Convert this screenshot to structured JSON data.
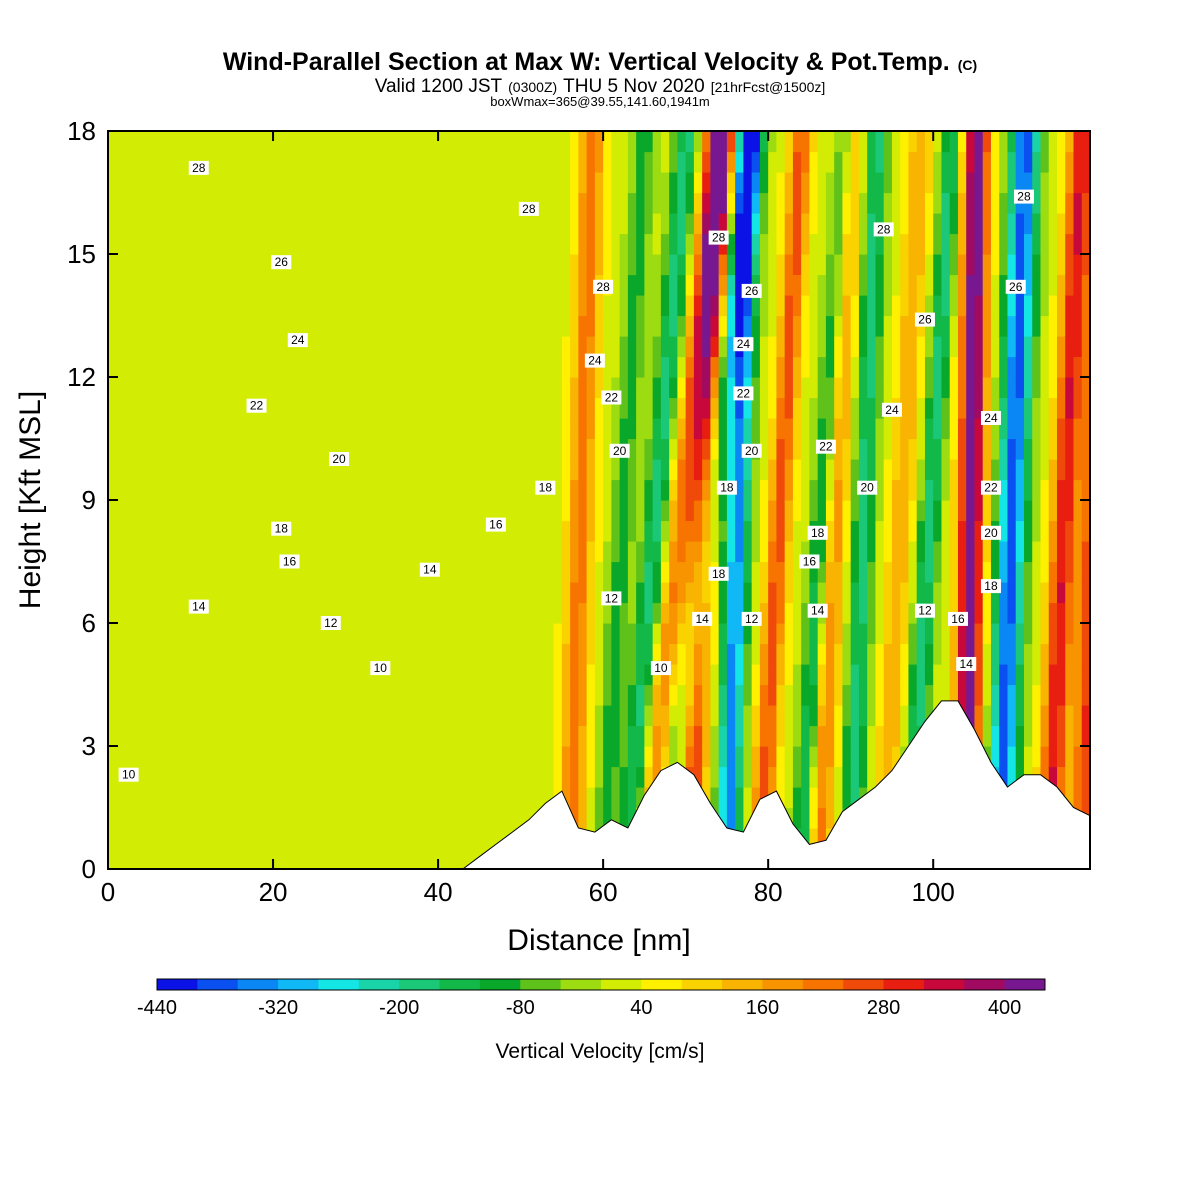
{
  "chart_data": {
    "type": "heatmap",
    "title": "Wind-Parallel Section at Max W: Vertical Velocity & Pot.Temp.",
    "title_mark": "(C)",
    "subtitle": {
      "prefix": "Valid 1200 JST",
      "utc": "(0300Z)",
      "date": "THU 5 Nov 2020",
      "forecast": "[21hrFcst@1500z]"
    },
    "subtitle2": "boxWmax=365@39.55,141.60,1941m",
    "xlabel": "Distance [nm]",
    "ylabel": "Height [Kft MSL]",
    "xlim": [
      0,
      119
    ],
    "ylim": [
      0,
      18
    ],
    "xticks": [
      0,
      20,
      40,
      60,
      80,
      100
    ],
    "yticks": [
      0,
      3,
      6,
      9,
      12,
      15,
      18
    ],
    "colorbar": {
      "label": "Vertical Velocity [cm/s]",
      "levels": [
        -440,
        -400,
        -360,
        -320,
        -280,
        -240,
        -200,
        -160,
        -120,
        -80,
        -40,
        0,
        40,
        80,
        120,
        160,
        200,
        240,
        280,
        320,
        360,
        400,
        440
      ],
      "colors": [
        "#0b12e6",
        "#0a4ff0",
        "#0a86f5",
        "#10b9f5",
        "#14e6e6",
        "#18d4a8",
        "#1ac878",
        "#12b848",
        "#0aa82a",
        "#5ec21a",
        "#9cdc10",
        "#d2ec04",
        "#fff000",
        "#fad200",
        "#f8b400",
        "#f89400",
        "#f87400",
        "#f04a0a",
        "#e81e10",
        "#c8083a",
        "#a00a60",
        "#781890"
      ],
      "tick_values": [
        -440,
        -320,
        -200,
        -80,
        40,
        160,
        280,
        400
      ],
      "tick_labels": [
        "-440",
        "-320",
        "-200",
        "-80",
        "40",
        "160",
        "280",
        "400"
      ]
    },
    "terrain": {
      "x": [
        0,
        43,
        45,
        47,
        49,
        51,
        53,
        55,
        57,
        59,
        61,
        63,
        65,
        67,
        69,
        71,
        73,
        75,
        77,
        79,
        81,
        83,
        85,
        87,
        89,
        91,
        93,
        95,
        97,
        99,
        101,
        103,
        105,
        107,
        109,
        111,
        113,
        115,
        117,
        119
      ],
      "height": [
        0,
        0,
        0.3,
        0.6,
        0.9,
        1.2,
        1.6,
        1.9,
        1.0,
        0.9,
        1.2,
        1.0,
        1.8,
        2.4,
        2.6,
        2.3,
        1.6,
        1.0,
        0.9,
        1.7,
        1.9,
        1.1,
        0.6,
        0.7,
        1.4,
        1.7,
        2.0,
        2.4,
        3.0,
        3.6,
        4.1,
        4.1,
        3.4,
        2.6,
        2.0,
        2.3,
        2.3,
        2.0,
        1.5,
        1.3
      ]
    },
    "w_field": {
      "background": 20,
      "mountain_waves": [
        {
          "x_at_0": 56,
          "slope": 0.15,
          "width": 1.6,
          "amp": 200
        },
        {
          "x_at_0": 60,
          "slope": 0.28,
          "width": 1.4,
          "amp": -120
        },
        {
          "x_at_0": 63,
          "slope": 0.4,
          "width": 1.5,
          "amp": -200
        },
        {
          "x_at_0": 65,
          "slope": 0.5,
          "width": 1.6,
          "amp": 180
        },
        {
          "x_at_0": 68,
          "slope": 0.55,
          "width": 1.7,
          "amp": -240
        },
        {
          "x_at_0": 70,
          "slope": 0.25,
          "width": 1.8,
          "amp": 360
        },
        {
          "x_at_0": 75,
          "slope": 0.15,
          "width": 1.5,
          "amp": -360
        },
        {
          "x_at_0": 79,
          "slope": 0.28,
          "width": 1.4,
          "amp": 240
        },
        {
          "x_at_0": 84,
          "slope": 0.3,
          "width": 1.3,
          "amp": -220
        },
        {
          "x_at_0": 86,
          "slope": 0.22,
          "width": 1.6,
          "amp": 200
        },
        {
          "x_at_0": 90,
          "slope": 0.18,
          "width": 1.4,
          "amp": -200
        },
        {
          "x_at_0": 94,
          "slope": 0.25,
          "width": 1.5,
          "amp": 140
        },
        {
          "x_at_0": 97,
          "slope": 0.3,
          "width": 1.3,
          "amp": -200
        },
        {
          "x_at_0": 104,
          "slope": 0.07,
          "width": 1.6,
          "amp": 420
        },
        {
          "x_at_0": 108,
          "slope": 0.18,
          "width": 1.8,
          "amp": -400
        },
        {
          "x_at_0": 114,
          "slope": 0.22,
          "width": 1.6,
          "amp": 300
        },
        {
          "x_at_0": 118,
          "slope": 0.15,
          "width": 1.4,
          "amp": 260
        }
      ]
    },
    "theta_labels": [
      {
        "x": 2.5,
        "y": 2.3,
        "text": "10"
      },
      {
        "x": 33,
        "y": 4.9,
        "text": "10"
      },
      {
        "x": 67,
        "y": 4.9,
        "text": "10"
      },
      {
        "x": 27,
        "y": 6.0,
        "text": "12"
      },
      {
        "x": 61,
        "y": 6.6,
        "text": "12"
      },
      {
        "x": 78,
        "y": 6.1,
        "text": "12"
      },
      {
        "x": 99,
        "y": 6.3,
        "text": "12"
      },
      {
        "x": 11,
        "y": 6.4,
        "text": "14"
      },
      {
        "x": 39,
        "y": 7.3,
        "text": "14"
      },
      {
        "x": 72,
        "y": 6.1,
        "text": "14"
      },
      {
        "x": 86,
        "y": 6.3,
        "text": "14"
      },
      {
        "x": 104,
        "y": 5.0,
        "text": "14"
      },
      {
        "x": 22,
        "y": 7.5,
        "text": "16"
      },
      {
        "x": 85,
        "y": 7.5,
        "text": "16"
      },
      {
        "x": 103,
        "y": 6.1,
        "text": "16"
      },
      {
        "x": 21,
        "y": 8.3,
        "text": "18"
      },
      {
        "x": 47,
        "y": 8.4,
        "text": "16"
      },
      {
        "x": 53,
        "y": 9.3,
        "text": "18"
      },
      {
        "x": 74,
        "y": 7.2,
        "text": "18"
      },
      {
        "x": 75,
        "y": 9.3,
        "text": "18"
      },
      {
        "x": 86,
        "y": 8.2,
        "text": "18"
      },
      {
        "x": 107,
        "y": 6.9,
        "text": "18"
      },
      {
        "x": 28,
        "y": 10.0,
        "text": "20"
      },
      {
        "x": 62,
        "y": 10.2,
        "text": "20"
      },
      {
        "x": 78,
        "y": 10.2,
        "text": "20"
      },
      {
        "x": 92,
        "y": 9.3,
        "text": "20"
      },
      {
        "x": 107,
        "y": 8.2,
        "text": "20"
      },
      {
        "x": 18,
        "y": 11.3,
        "text": "22"
      },
      {
        "x": 61,
        "y": 11.5,
        "text": "22"
      },
      {
        "x": 77,
        "y": 11.6,
        "text": "22"
      },
      {
        "x": 87,
        "y": 10.3,
        "text": "22"
      },
      {
        "x": 107,
        "y": 9.3,
        "text": "22"
      },
      {
        "x": 23,
        "y": 12.9,
        "text": "24"
      },
      {
        "x": 59,
        "y": 12.4,
        "text": "24"
      },
      {
        "x": 77,
        "y": 12.8,
        "text": "24"
      },
      {
        "x": 95,
        "y": 11.2,
        "text": "24"
      },
      {
        "x": 107,
        "y": 11.0,
        "text": "24"
      },
      {
        "x": 21,
        "y": 14.8,
        "text": "26"
      },
      {
        "x": 78,
        "y": 14.1,
        "text": "26"
      },
      {
        "x": 99,
        "y": 13.4,
        "text": "26"
      },
      {
        "x": 110,
        "y": 14.2,
        "text": "26"
      },
      {
        "x": 11,
        "y": 17.1,
        "text": "28"
      },
      {
        "x": 51,
        "y": 16.1,
        "text": "28"
      },
      {
        "x": 60,
        "y": 14.2,
        "text": "28"
      },
      {
        "x": 74,
        "y": 15.4,
        "text": "28"
      },
      {
        "x": 94,
        "y": 15.6,
        "text": "28"
      },
      {
        "x": 111,
        "y": 16.4,
        "text": "28"
      }
    ]
  }
}
